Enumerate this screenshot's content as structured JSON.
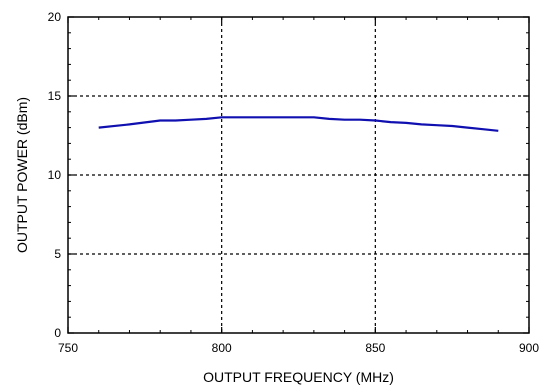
{
  "chart_data": {
    "type": "line",
    "title": "",
    "xlabel": "OUTPUT FREQUENCY (MHz)",
    "ylabel": "OUTPUT POWER (dBm)",
    "xlim": [
      750,
      900
    ],
    "ylim": [
      0,
      20
    ],
    "xticks": [
      750,
      800,
      850,
      900
    ],
    "xtick_labels": [
      "750",
      "800",
      "850",
      "900"
    ],
    "yticks": [
      0,
      5,
      10,
      15,
      20
    ],
    "ytick_labels": [
      "0",
      "5",
      "10",
      "15",
      "20"
    ],
    "grid": true,
    "grid_style": "dotted",
    "legend": "none",
    "series": [
      {
        "color": "#1010b0",
        "x": [
          760,
          770,
          780,
          785,
          790,
          795,
          800,
          805,
          810,
          815,
          820,
          825,
          830,
          835,
          840,
          845,
          850,
          855,
          860,
          865,
          870,
          875,
          880,
          885,
          890
        ],
        "y": [
          13.0,
          13.2,
          13.45,
          13.45,
          13.5,
          13.55,
          13.65,
          13.65,
          13.65,
          13.65,
          13.65,
          13.65,
          13.65,
          13.55,
          13.5,
          13.5,
          13.45,
          13.35,
          13.3,
          13.2,
          13.15,
          13.1,
          13.0,
          12.9,
          12.8
        ]
      }
    ]
  }
}
